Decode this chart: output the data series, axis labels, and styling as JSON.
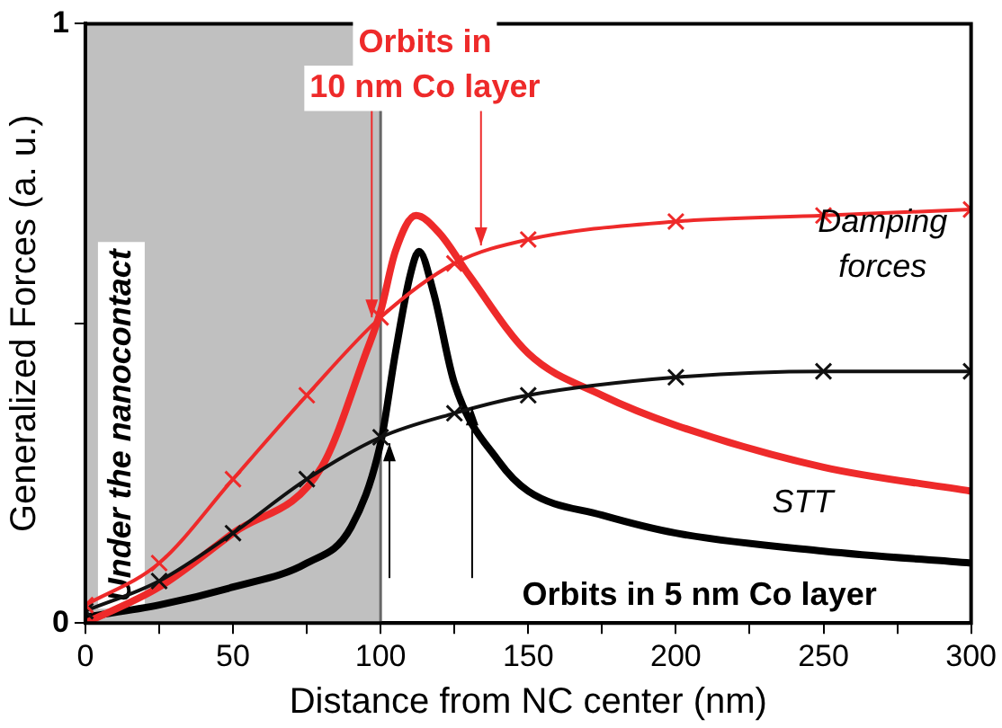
{
  "chart_data": {
    "type": "line",
    "xlabel": "Distance from NC center (nm)",
    "ylabel": "Generalized Forces (a. u.)",
    "xlim": [
      0,
      300
    ],
    "ylim": [
      0,
      1
    ],
    "xticks": [
      0,
      {
        "value": 25,
        "label": null
      },
      50,
      {
        "value": 75,
        "label": null
      },
      100,
      {
        "value": 125,
        "label": null
      },
      150,
      {
        "value": 175,
        "label": null
      },
      200,
      {
        "value": 225,
        "label": null
      },
      250,
      {
        "value": 275,
        "label": null
      },
      300
    ],
    "yticks": [
      0,
      {
        "value": 0.5,
        "label": null
      },
      1
    ],
    "legend": false,
    "bands": [
      {
        "axis": "x",
        "from": 0,
        "to": 100,
        "label": "Under the nanocontact",
        "color": "#c0c0c0"
      }
    ],
    "series": [
      {
        "color": "#ee2a2a",
        "marker": "cross",
        "x": [
          0,
          25,
          50,
          75,
          100,
          125,
          150,
          200,
          250,
          300
        ],
        "values": [
          0.03,
          0.1,
          0.24,
          0.38,
          0.51,
          0.6,
          0.64,
          0.67,
          0.68,
          0.69
        ]
      },
      {
        "color": "#111111",
        "marker": "cross",
        "x": [
          0,
          25,
          50,
          75,
          100,
          125,
          150,
          200,
          250,
          300
        ],
        "values": [
          0.02,
          0.07,
          0.15,
          0.24,
          0.31,
          0.35,
          0.38,
          0.41,
          0.42,
          0.42
        ]
      },
      {
        "color": "#ee2a2a",
        "marker": "none",
        "x": [
          0,
          25,
          50,
          80,
          95,
          100,
          105,
          112,
          120,
          130,
          150,
          175,
          200,
          250,
          300
        ],
        "values": [
          0,
          0.06,
          0.15,
          0.26,
          0.45,
          0.52,
          0.62,
          0.68,
          0.65,
          0.58,
          0.45,
          0.38,
          0.33,
          0.26,
          0.22
        ]
      },
      {
        "color": "#000000",
        "marker": "none",
        "x": [
          0,
          25,
          50,
          75,
          90,
          100,
          105,
          110,
          113,
          118,
          125,
          140,
          150,
          175,
          200,
          250,
          300
        ],
        "values": [
          0.01,
          0.03,
          0.06,
          0.1,
          0.16,
          0.3,
          0.45,
          0.58,
          0.62,
          0.55,
          0.4,
          0.27,
          0.22,
          0.18,
          0.15,
          0.12,
          0.1
        ]
      }
    ],
    "annotations": [
      {
        "text": "Orbits in\n10 nm Co layer",
        "x": 97,
        "y": 0.51
      },
      "Damping\nforces",
      "STT",
      "Orbits in 5 nm Co layer"
    ]
  }
}
